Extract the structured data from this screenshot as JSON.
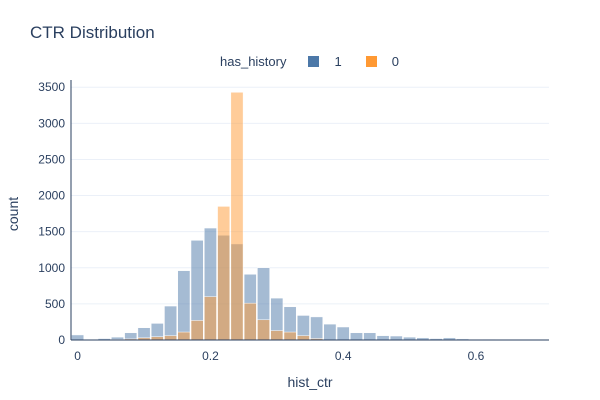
{
  "chart_data": {
    "type": "bar",
    "title": "CTR Distribution",
    "xlabel": "hist_ctr",
    "ylabel": "count",
    "xlim": [
      -0.01,
      0.71
    ],
    "ylim": [
      0,
      3600
    ],
    "bin_width": 0.02,
    "xticks": [
      0,
      0.2,
      0.4,
      0.6
    ],
    "xtick_labels": [
      "0",
      "0.2",
      "0.4",
      "0.6"
    ],
    "yticks": [
      0,
      500,
      1000,
      1500,
      2000,
      2500,
      3000,
      3500
    ],
    "ytick_labels": [
      "0",
      "500",
      "1000",
      "1500",
      "2000",
      "2500",
      "3000",
      "3500"
    ],
    "grid": true,
    "barmode": "overlay",
    "legend": {
      "title": "has_history",
      "placement": "top-center"
    },
    "series": [
      {
        "name": "1",
        "color": "#4c78a8",
        "opacity": 0.5,
        "x": [
          -0.01,
          0.01,
          0.03,
          0.05,
          0.07,
          0.09,
          0.11,
          0.13,
          0.15,
          0.17,
          0.19,
          0.21,
          0.23,
          0.25,
          0.27,
          0.29,
          0.31,
          0.33,
          0.35,
          0.37,
          0.39,
          0.41,
          0.43,
          0.45,
          0.47,
          0.49,
          0.51,
          0.53,
          0.55,
          0.57,
          0.59,
          0.61,
          0.63,
          0.65,
          0.67
        ],
        "values": [
          70,
          5,
          20,
          40,
          100,
          170,
          230,
          470,
          960,
          1380,
          1550,
          1450,
          1330,
          910,
          1000,
          580,
          460,
          340,
          320,
          220,
          180,
          100,
          100,
          60,
          55,
          40,
          30,
          20,
          30,
          15,
          10,
          8,
          5,
          5,
          3
        ]
      },
      {
        "name": "0",
        "color": "#ff9933",
        "opacity": 0.5,
        "x": [
          0.03,
          0.05,
          0.07,
          0.09,
          0.11,
          0.13,
          0.15,
          0.17,
          0.19,
          0.21,
          0.23,
          0.25,
          0.27,
          0.29,
          0.31,
          0.33,
          0.35
        ],
        "values": [
          3,
          8,
          15,
          30,
          45,
          60,
          110,
          270,
          600,
          1850,
          3430,
          510,
          280,
          130,
          110,
          60,
          20
        ]
      }
    ]
  }
}
